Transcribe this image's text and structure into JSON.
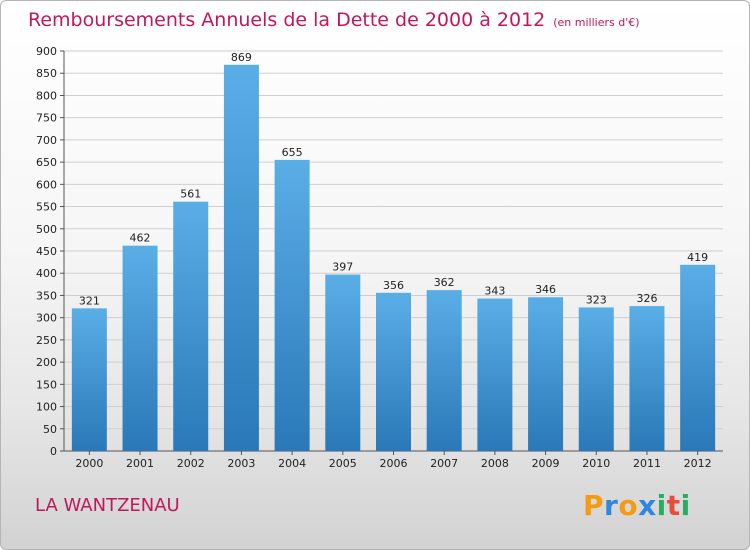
{
  "header": {
    "title": "Remboursements Annuels de la Dette de 2000 à 2012",
    "unit": "(en milliers d'€)"
  },
  "footer": {
    "commune": "LA WANTZENAU",
    "logo_letters": [
      "P",
      "r",
      "o",
      "x",
      "i",
      "t",
      "i"
    ],
    "logo_colors": [
      "#f39c12",
      "#2e86de",
      "#f39c12",
      "#2e86de",
      "#27ae60",
      "#e74c3c",
      "#27ae60"
    ]
  },
  "colors": {
    "bar": "#4fa3e0",
    "bar_dark": "#2f7fc1",
    "title": "#c2185b",
    "grid": "#cfcfcf"
  },
  "chart_data": {
    "type": "bar",
    "title": "Remboursements Annuels de la Dette de 2000 à 2012",
    "xlabel": "",
    "ylabel": "",
    "categories": [
      "2000",
      "2001",
      "2002",
      "2003",
      "2004",
      "2005",
      "2006",
      "2007",
      "2008",
      "2009",
      "2010",
      "2011",
      "2012"
    ],
    "values": [
      321,
      462,
      561,
      869,
      655,
      397,
      356,
      362,
      343,
      346,
      323,
      326,
      419
    ],
    "ylim": [
      0,
      900
    ],
    "yticks": [
      0,
      50,
      100,
      150,
      200,
      250,
      300,
      350,
      400,
      450,
      500,
      550,
      600,
      650,
      700,
      750,
      800,
      850,
      900
    ],
    "grid": true,
    "data_labels": true
  }
}
